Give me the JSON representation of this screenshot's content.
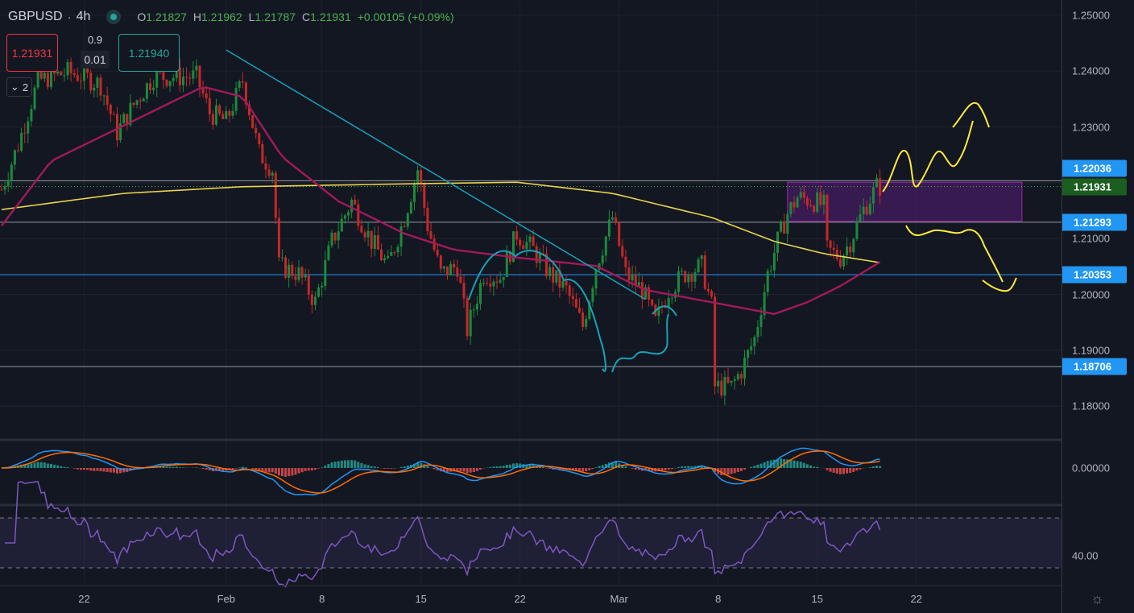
{
  "header": {
    "symbol": "GBPUSD",
    "interval": "4h",
    "open_label": "O",
    "open": "1.21827",
    "high_label": "H",
    "high": "1.21962",
    "low_label": "L",
    "low": "1.21787",
    "close_label": "C",
    "close": "1.21931",
    "change": "+0.00105 (+0.09%)"
  },
  "trade": {
    "sell_price": "1.21931",
    "buy_price": "1.21940",
    "spread": "0.9",
    "quantity": "0.01"
  },
  "indicators_collapsed": {
    "count": "2"
  },
  "price_axis": {
    "ticks": [
      "1.25000",
      "1.24000",
      "1.23000",
      "1.21000",
      "1.20000",
      "1.19000",
      "1.18000"
    ],
    "tick_values": [
      1.25,
      1.24,
      1.23,
      1.21,
      1.2,
      1.19,
      1.18
    ],
    "tags": [
      {
        "label": "1.22036",
        "value": 1.22036,
        "color": "#2196f3"
      },
      {
        "label": "1.21931",
        "value": 1.21931,
        "color": "#1b5e20"
      },
      {
        "label": "1.21293",
        "value": 1.21293,
        "color": "#2196f3"
      },
      {
        "label": "1.20353",
        "value": 1.20353,
        "color": "#2196f3"
      },
      {
        "label": "1.18706",
        "value": 1.18706,
        "color": "#2196f3"
      }
    ]
  },
  "macd_axis": {
    "label": "0.00000"
  },
  "rsi_axis": {
    "label": "40.00"
  },
  "time_axis": {
    "labels": [
      "22",
      "Feb",
      "8",
      "15",
      "22",
      "Mar",
      "8",
      "15",
      "22"
    ],
    "label_bars": [
      25,
      68,
      97,
      127,
      157,
      187,
      217,
      247,
      277
    ]
  },
  "colors": {
    "up": "#26a69a",
    "down": "#f23645",
    "candle_up": "#1b8a3c",
    "candle_down": "#c62828",
    "ma_fast": "#a3195b",
    "ma_slow": "#e8d44d",
    "trendline": "#17a2b8",
    "zone": "#7b1fa2",
    "drawing": "#ffeb3b"
  },
  "chart_data": {
    "type": "candlestick",
    "title": "GBPUSD 4h",
    "ylim": [
      1.175,
      1.253
    ],
    "approx_close_path": {
      "bar": [
        0,
        5,
        11,
        20,
        25,
        30,
        35,
        40,
        46,
        52,
        59,
        63,
        68,
        73,
        78,
        82,
        84,
        90,
        95,
        100,
        106,
        112,
        117,
        122,
        126,
        129,
        133,
        138,
        141,
        146,
        151,
        156,
        161,
        166,
        171,
        176,
        180,
        185,
        189,
        194,
        198,
        202,
        207,
        212,
        215,
        216,
        221,
        224,
        228,
        232,
        235,
        238,
        241,
        246,
        249,
        250,
        254,
        257,
        261,
        265
      ],
      "price": [
        1.2188,
        1.2268,
        1.2383,
        1.2398,
        1.239,
        1.2376,
        1.229,
        1.234,
        1.239,
        1.239,
        1.239,
        1.2325,
        1.231,
        1.2383,
        1.2253,
        1.2224,
        1.2051,
        1.2037,
        1.1986,
        1.2095,
        1.2167,
        1.2095,
        1.2051,
        1.2138,
        1.2224,
        1.2123,
        1.2037,
        1.2051,
        1.1936,
        1.2037,
        1.203,
        1.2109,
        1.208,
        1.2037,
        1.2008,
        1.1943,
        1.2051,
        1.2138,
        1.2037,
        1.2008,
        1.195,
        1.2008,
        1.2037,
        1.2051,
        1.1979,
        1.1835,
        1.1835,
        1.1864,
        1.1921,
        1.2037,
        1.2095,
        1.2145,
        1.2174,
        1.2167,
        1.2159,
        1.208,
        1.2066,
        1.2095,
        1.2152,
        1.2193
      ]
    },
    "ma_fast": {
      "bar": [
        0,
        15,
        61,
        73,
        85,
        102,
        122,
        137,
        156,
        180,
        195,
        215,
        234,
        244,
        254,
        266
      ],
      "price": [
        1.2123,
        1.2239,
        1.2372,
        1.2354,
        1.2246,
        1.2167,
        1.2109,
        1.208,
        1.2066,
        1.2051,
        1.2008,
        1.1986,
        1.1965,
        1.1986,
        1.2015,
        1.2058
      ]
    },
    "ma_slow": {
      "bar": [
        0,
        37,
        73,
        122,
        156,
        185,
        215,
        234,
        249,
        266
      ],
      "price": [
        1.2152,
        1.2181,
        1.2193,
        1.2198,
        1.2201,
        1.2181,
        1.2138,
        1.2095,
        1.2073,
        1.2057
      ]
    },
    "trendline": {
      "bar": [
        68,
        195
      ],
      "price": [
        1.2438,
        1.1991
      ]
    },
    "horizontal_levels": [
      1.22036,
      1.21293,
      1.20353,
      1.18706
    ],
    "zone": {
      "bar": [
        238,
        309
      ],
      "price": [
        1.2131,
        1.2201
      ]
    },
    "rsi_bands": [
      70,
      30
    ]
  }
}
